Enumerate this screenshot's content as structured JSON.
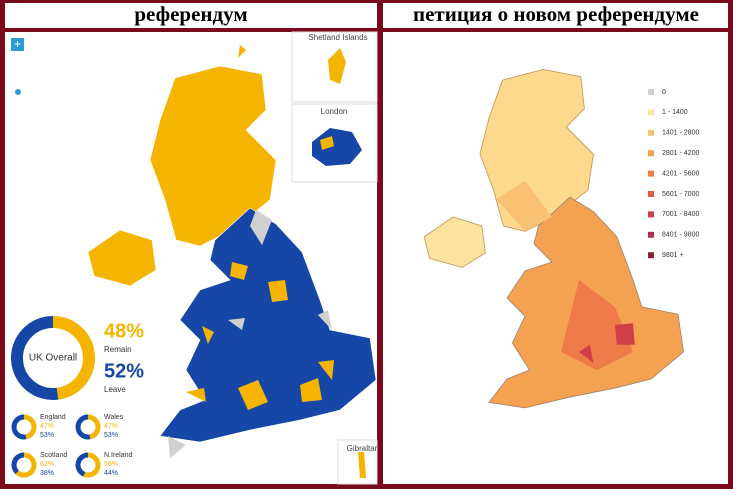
{
  "header": {
    "left_title": "референдум",
    "right_title": "петиция о новом референдуме"
  },
  "left_map": {
    "inset_labels": [
      "Shetland Islands",
      "London",
      "Gibraltar"
    ],
    "overall": {
      "name": "UK Overall",
      "remain": 48,
      "remain_label": "48%",
      "remain_text": "Remain",
      "leave": 52,
      "leave_label": "52%",
      "leave_text": "Leave"
    },
    "regions": [
      {
        "name": "England",
        "remain": 47,
        "remain_label": "47%",
        "leave": 53,
        "leave_label": "53%"
      },
      {
        "name": "Wales",
        "remain": 47,
        "remain_label": "47%",
        "leave": 53,
        "leave_label": "53%"
      },
      {
        "name": "Scotland",
        "remain": 62,
        "remain_label": "62%",
        "leave": 38,
        "leave_label": "38%"
      },
      {
        "name": "N.Ireland",
        "remain": 56,
        "remain_label": "56%",
        "leave": 44,
        "leave_label": "44%"
      }
    ],
    "remain_color": "#f5b400",
    "leave_color": "#1747a6"
  },
  "right_map": {
    "legend": [
      {
        "label": "0",
        "color": "#cfcfcf"
      },
      {
        "label": "1 - 1400",
        "color": "#fde2a0"
      },
      {
        "label": "1401 - 2800",
        "color": "#f9c171"
      },
      {
        "label": "2801 - 4200",
        "color": "#f4a152"
      },
      {
        "label": "4201 - 5600",
        "color": "#ee7b48"
      },
      {
        "label": "5601 - 7000",
        "color": "#e35a4a"
      },
      {
        "label": "7001 - 8400",
        "color": "#cf3e49"
      },
      {
        "label": "8401 - 9800",
        "color": "#b1324a"
      },
      {
        "label": "9801 +",
        "color": "#8a2236"
      }
    ]
  }
}
